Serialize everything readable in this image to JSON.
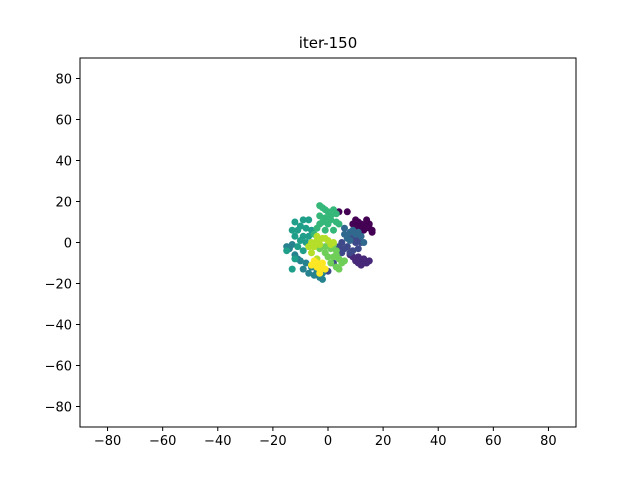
{
  "chart_data": {
    "type": "scatter",
    "title": "iter-150",
    "xlabel": "",
    "ylabel": "",
    "xlim": [
      -90,
      90
    ],
    "ylim": [
      -90,
      90
    ],
    "xticks": [
      -80,
      -60,
      -40,
      -20,
      0,
      20,
      40,
      60,
      80
    ],
    "yticks": [
      -80,
      -60,
      -40,
      -20,
      0,
      20,
      40,
      60,
      80
    ],
    "xtick_labels": [
      "−80",
      "−60",
      "−40",
      "−20",
      "0",
      "20",
      "40",
      "60",
      "80"
    ],
    "ytick_labels": [
      "−80",
      "−60",
      "−40",
      "−20",
      "0",
      "20",
      "40",
      "60",
      "80"
    ],
    "grid": false,
    "legend": "none",
    "colormap": "viridis",
    "series": [
      {
        "color": "#440154",
        "points": [
          [
            10,
            8
          ],
          [
            12,
            9
          ],
          [
            14,
            10
          ],
          [
            15,
            7
          ],
          [
            16,
            5
          ],
          [
            13,
            6
          ],
          [
            11,
            10
          ],
          [
            14,
            11
          ],
          [
            9,
            9
          ],
          [
            12,
            7
          ],
          [
            15,
            9
          ],
          [
            16,
            6
          ],
          [
            13,
            8
          ],
          [
            10,
            11
          ],
          [
            7,
            15
          ],
          [
            4,
            15
          ],
          [
            11,
            6
          ]
        ]
      },
      {
        "color": "#482878",
        "points": [
          [
            10,
            -8
          ],
          [
            12,
            -9
          ],
          [
            14,
            -10
          ],
          [
            11,
            -7
          ],
          [
            13,
            -8
          ],
          [
            9,
            -7
          ],
          [
            15,
            -9
          ],
          [
            12,
            -11
          ],
          [
            8,
            -6
          ],
          [
            11,
            -10
          ],
          [
            13,
            -10
          ],
          [
            10,
            -9
          ]
        ]
      },
      {
        "color": "#3e4989",
        "points": [
          [
            5,
            0
          ],
          [
            7,
            -2
          ],
          [
            9,
            -4
          ],
          [
            10,
            0
          ],
          [
            12,
            0
          ],
          [
            11,
            -3
          ],
          [
            8,
            -5
          ],
          [
            6,
            -3
          ],
          [
            4,
            -2
          ],
          [
            9,
            2
          ],
          [
            7,
            3
          ],
          [
            11,
            2
          ],
          [
            5,
            -5
          ],
          [
            0,
            -14
          ],
          [
            2,
            -10
          ]
        ]
      },
      {
        "color": "#31688e",
        "points": [
          [
            6,
            7
          ],
          [
            8,
            5
          ],
          [
            10,
            4
          ],
          [
            7,
            2
          ],
          [
            9,
            6
          ],
          [
            11,
            5
          ],
          [
            12,
            3
          ],
          [
            13,
            0
          ],
          [
            8,
            1
          ],
          [
            6,
            4
          ]
        ]
      },
      {
        "color": "#26828e",
        "points": [
          [
            -14,
            -3
          ],
          [
            -12,
            -6
          ],
          [
            -10,
            -9
          ],
          [
            -9,
            -13
          ],
          [
            -7,
            -15
          ],
          [
            -5,
            -16
          ],
          [
            -3,
            -17
          ],
          [
            -2,
            -18
          ],
          [
            -4,
            -14
          ],
          [
            -8,
            -10
          ],
          [
            -11,
            -8
          ],
          [
            -13,
            -1
          ],
          [
            -15,
            -2
          ],
          [
            -6,
            -12
          ],
          [
            -2,
            -15
          ]
        ]
      },
      {
        "color": "#1f9e89",
        "points": [
          [
            -12,
            10
          ],
          [
            -9,
            11
          ],
          [
            -7,
            11
          ],
          [
            -10,
            8
          ],
          [
            -8,
            7
          ],
          [
            -11,
            6
          ],
          [
            -12,
            3
          ],
          [
            -9,
            3
          ],
          [
            -6,
            6
          ],
          [
            -13,
            6
          ],
          [
            -7,
            3
          ],
          [
            -10,
            1
          ],
          [
            -8,
            0
          ],
          [
            -11,
            -2
          ],
          [
            -6,
            -1
          ],
          [
            -9,
            -4
          ],
          [
            -12,
            -8
          ],
          [
            -15,
            -4
          ],
          [
            -13,
            -13
          ]
        ]
      },
      {
        "color": "#35b779",
        "points": [
          [
            -3,
            18
          ],
          [
            -2,
            17
          ],
          [
            -1,
            16
          ],
          [
            0,
            15
          ],
          [
            2,
            16
          ],
          [
            3,
            14
          ],
          [
            1,
            13
          ],
          [
            -1,
            12
          ],
          [
            -3,
            13
          ],
          [
            1,
            11
          ],
          [
            3,
            10
          ],
          [
            -2,
            10
          ],
          [
            0,
            9
          ],
          [
            4,
            9
          ],
          [
            -3,
            9
          ],
          [
            -1,
            6
          ],
          [
            2,
            6
          ],
          [
            -4,
            7
          ],
          [
            -5,
            4
          ]
        ]
      },
      {
        "color": "#6ece58",
        "points": [
          [
            -3,
            -3
          ],
          [
            -1,
            -2
          ],
          [
            1,
            -3
          ],
          [
            3,
            -4
          ],
          [
            2,
            -7
          ],
          [
            4,
            -8
          ],
          [
            5,
            -10
          ],
          [
            3,
            -12
          ],
          [
            4,
            -13
          ],
          [
            1,
            -10
          ],
          [
            0,
            -7
          ],
          [
            -1,
            -5
          ],
          [
            2,
            -1
          ],
          [
            3,
            -6
          ],
          [
            6,
            -9
          ]
        ]
      },
      {
        "color": "#b5de2b",
        "points": [
          [
            -6,
            0
          ],
          [
            -4,
            1
          ],
          [
            -2,
            2
          ],
          [
            0,
            1
          ],
          [
            1,
            -1
          ],
          [
            -3,
            -1
          ],
          [
            -5,
            -2
          ],
          [
            2,
            0
          ],
          [
            -1,
            2
          ],
          [
            -4,
            3
          ],
          [
            -7,
            -2
          ],
          [
            -6,
            -5
          ],
          [
            -4,
            -8
          ],
          [
            -5,
            -10
          ],
          [
            -3,
            -11
          ]
        ]
      },
      {
        "color": "#fde725",
        "points": [
          [
            -5,
            -9
          ],
          [
            -4,
            -12
          ],
          [
            -3,
            -13
          ],
          [
            -2,
            -12
          ],
          [
            -1,
            -13
          ],
          [
            -4,
            -10
          ],
          [
            -6,
            -11
          ],
          [
            -2,
            -10
          ],
          [
            -3,
            -15
          ]
        ]
      }
    ]
  }
}
